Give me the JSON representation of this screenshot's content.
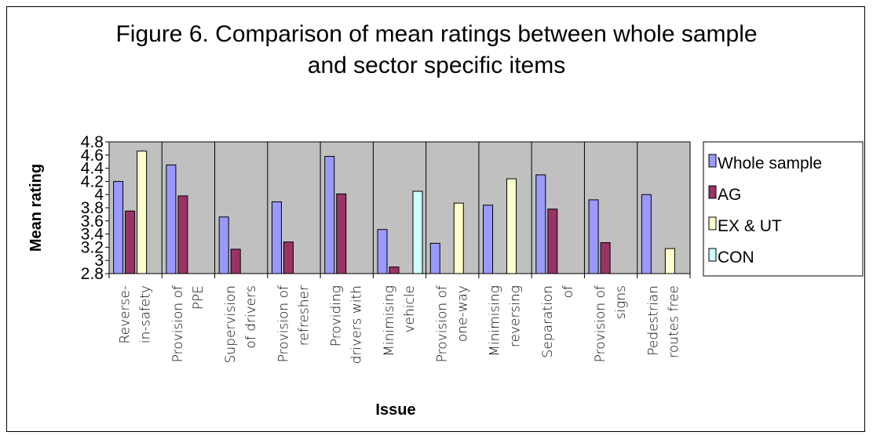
{
  "chart_data": {
    "type": "bar",
    "title_lines": [
      "Figure 6. Comparison of mean ratings between whole sample",
      "and sector specific items"
    ],
    "xlabel": "Issue",
    "ylabel": "Mean rating",
    "ylim": [
      2.8,
      4.8
    ],
    "yticks": [
      "2.8",
      "3",
      "3.2",
      "3.4",
      "3.6",
      "3.8",
      "4",
      "4.2",
      "4.4",
      "4.6",
      "4.8"
    ],
    "grid": false,
    "legend_position": "right",
    "categories": [
      [
        "Reverse-",
        "in-safety"
      ],
      [
        "Provision of",
        "PPE"
      ],
      [
        "Supervision",
        "of drivers"
      ],
      [
        "Provision of",
        "refresher"
      ],
      [
        "Providing",
        "drivers with"
      ],
      [
        "Minimising",
        "vehicle"
      ],
      [
        "Provision of",
        "one-way"
      ],
      [
        "Minimising",
        "reversing"
      ],
      [
        "Separation",
        "of"
      ],
      [
        "Provision of",
        "signs"
      ],
      [
        "Pedestrian",
        "routes free"
      ]
    ],
    "series": [
      {
        "name": "Whole sample",
        "color": "#9999ff",
        "values": [
          4.2,
          4.45,
          3.66,
          3.89,
          4.58,
          3.47,
          3.26,
          3.84,
          4.3,
          3.92,
          4.0
        ]
      },
      {
        "name": "AG",
        "color": "#993366",
        "values": [
          3.75,
          3.98,
          3.17,
          3.28,
          4.01,
          2.9,
          null,
          null,
          3.78,
          3.27,
          null
        ]
      },
      {
        "name": "EX & UT",
        "color": "#ffffcc",
        "values": [
          4.66,
          null,
          null,
          null,
          null,
          null,
          3.87,
          4.24,
          null,
          null,
          3.18
        ]
      },
      {
        "name": "CON",
        "color": "#ccffff",
        "values": [
          null,
          null,
          null,
          null,
          null,
          4.05,
          null,
          null,
          null,
          null,
          null
        ]
      }
    ],
    "plot_background": "#c0c0c0"
  }
}
